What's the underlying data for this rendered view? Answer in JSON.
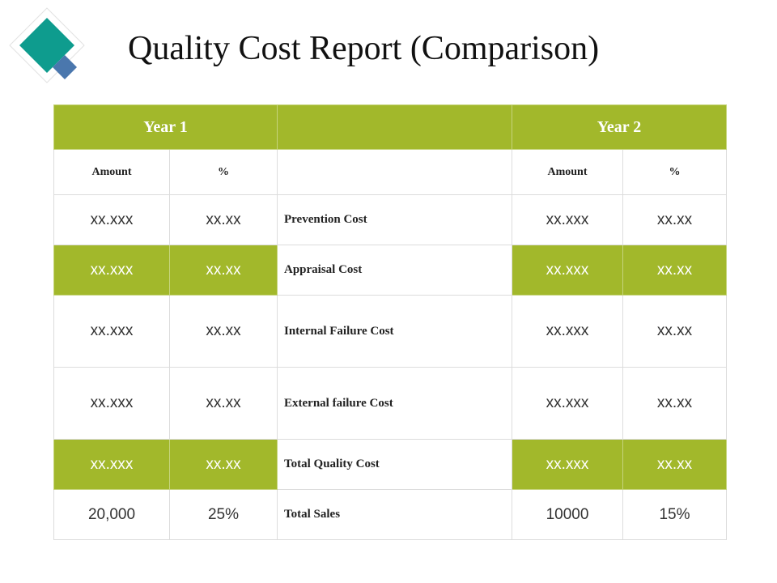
{
  "title": "Quality Cost Report (Comparison)",
  "colors": {
    "accent_green": "#a2b82b",
    "diamond_teal": "#0e9c8e",
    "diamond_blue": "#4a77ad"
  },
  "table": {
    "year1": "Year 1",
    "year2": "Year 2",
    "sub_headers": {
      "amount": "Amount",
      "percent": "%"
    },
    "rows": [
      {
        "label": "Prevention Cost",
        "y1_amount": "xx.xxx",
        "y1_pct": "xx.xx",
        "y2_amount": "xx.xxx",
        "y2_pct": "xx.xx",
        "highlight": false
      },
      {
        "label": "Appraisal Cost",
        "y1_amount": "xx.xxx",
        "y1_pct": "xx.xx",
        "y2_amount": "xx.xxx",
        "y2_pct": "xx.xx",
        "highlight": true
      },
      {
        "label": "Internal Failure Cost",
        "y1_amount": "xx.xxx",
        "y1_pct": "xx.xx",
        "y2_amount": "xx.xxx",
        "y2_pct": "xx.xx",
        "highlight": false
      },
      {
        "label": "External failure Cost",
        "y1_amount": "xx.xxx",
        "y1_pct": "xx.xx",
        "y2_amount": "xx.xxx",
        "y2_pct": "xx.xx",
        "highlight": false
      },
      {
        "label": "Total Quality Cost",
        "y1_amount": "xx.xxx",
        "y1_pct": "xx.xx",
        "y2_amount": "xx.xxx",
        "y2_pct": "xx.xx",
        "highlight": true
      },
      {
        "label": "Total Sales",
        "y1_amount": "20,000",
        "y1_pct": "25%",
        "y2_amount": "10000",
        "y2_pct": "15%",
        "highlight": false
      }
    ]
  }
}
